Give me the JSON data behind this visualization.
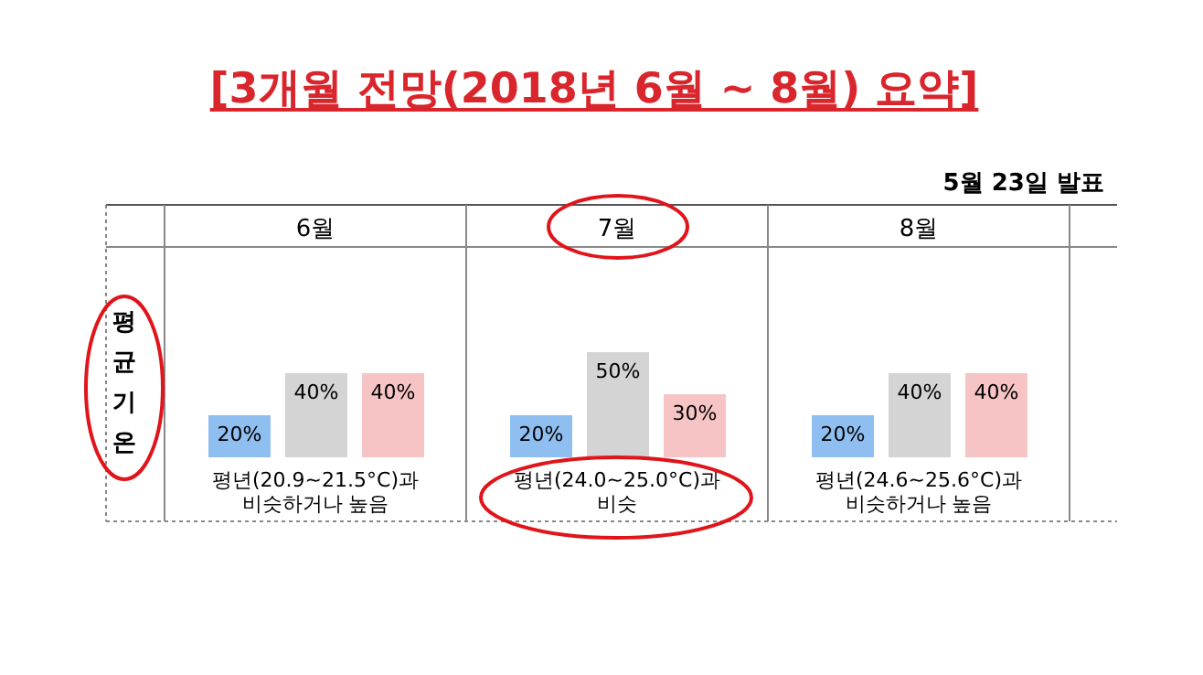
{
  "chart_data": [
    {
      "type": "bar",
      "title": "6월",
      "xlabel": "평년(20.9~21.5°C)과 비슷하거나 높음",
      "ylabel": "평균기온",
      "annotations": [
        "[3개월 전망(2018년 6월 ~ 8월) 요약]",
        "5월 23일 발표"
      ],
      "categories": [
        null,
        null,
        null
      ],
      "values": [
        20,
        40,
        40
      ],
      "value_labels": [
        "20%",
        "40%",
        "40%"
      ],
      "colors": [
        "#8fbff0",
        "#d4d4d4",
        "#f6c4c4"
      ],
      "tick_labels": false
    },
    {
      "type": "bar",
      "title": "7월",
      "xlabel": "평년(24.0~25.0°C)과 비슷",
      "categories": [
        null,
        null,
        null
      ],
      "values": [
        20,
        50,
        30
      ],
      "value_labels": [
        "20%",
        "50%",
        "30%"
      ],
      "colors": [
        "#8fbff0",
        "#d4d4d4",
        "#f6c4c4"
      ],
      "tick_labels": false
    },
    {
      "type": "bar",
      "title": "8월",
      "xlabel": "평년(24.6~25.6°C)과 비슷하거나 높음",
      "categories": [
        null,
        null,
        null
      ],
      "values": [
        20,
        40,
        40
      ],
      "value_labels": [
        "20%",
        "40%",
        "40%"
      ],
      "colors": [
        "#8fbff0",
        "#d4d4d4",
        "#f6c4c4"
      ],
      "tick_labels": false
    }
  ]
}
